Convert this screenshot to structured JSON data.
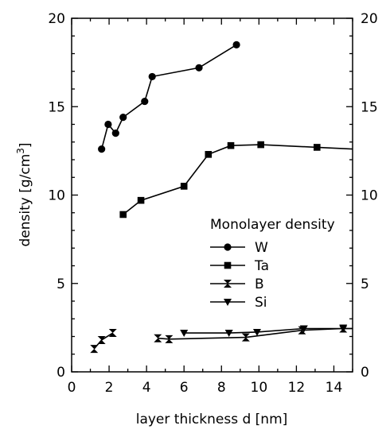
{
  "chart_data": {
    "type": "line",
    "title": "",
    "xlabel": "layer thickness d [nm]",
    "ylabel_main": "density [g/cm",
    "ylabel_sup": "3",
    "ylabel_close": "]",
    "xlim": [
      0,
      15
    ],
    "ylim": [
      0,
      20
    ],
    "x_ticks": [
      "0",
      "2",
      "4",
      "6",
      "8",
      "10",
      "12",
      "14"
    ],
    "y_ticks": [
      "0",
      "5",
      "10",
      "15",
      "20"
    ],
    "grid": false,
    "legend": {
      "title": "Monolayer density",
      "placement": "center-right"
    },
    "series": [
      {
        "name": "W",
        "marker": "circle",
        "x": [
          1.6,
          1.95,
          2.35,
          2.75,
          3.9,
          4.3,
          6.8,
          8.8
        ],
        "y": [
          12.6,
          14.0,
          13.5,
          14.4,
          15.3,
          16.7,
          17.2,
          18.5
        ]
      },
      {
        "name": "Ta",
        "marker": "square",
        "x": [
          2.75,
          3.7,
          6.0,
          7.3,
          8.5,
          10.1,
          13.1,
          15.0
        ],
        "y": [
          8.9,
          9.7,
          10.5,
          12.3,
          12.8,
          12.85,
          12.7,
          12.6
        ]
      },
      {
        "name": "B",
        "marker": "bowtie",
        "x": [
          1.2,
          1.6,
          2.2
        ],
        "y": [
          1.3,
          1.8,
          2.2
        ]
      },
      {
        "name": "B",
        "marker": "bowtie",
        "x": [
          4.6,
          5.2,
          9.3,
          12.3,
          14.5,
          15.0
        ],
        "y": [
          1.9,
          1.85,
          1.95,
          2.35,
          2.45,
          2.45
        ]
      },
      {
        "name": "Si",
        "marker": "triangle-down",
        "x": [
          6.0,
          8.4,
          9.9,
          12.4,
          14.5,
          15.0
        ],
        "y": [
          2.2,
          2.2,
          2.25,
          2.45,
          2.45,
          2.45
        ]
      }
    ],
    "legend_entries": [
      {
        "name": "W",
        "marker": "circle"
      },
      {
        "name": "Ta",
        "marker": "square"
      },
      {
        "name": "B",
        "marker": "bowtie"
      },
      {
        "name": "Si",
        "marker": "triangle-down"
      }
    ]
  }
}
